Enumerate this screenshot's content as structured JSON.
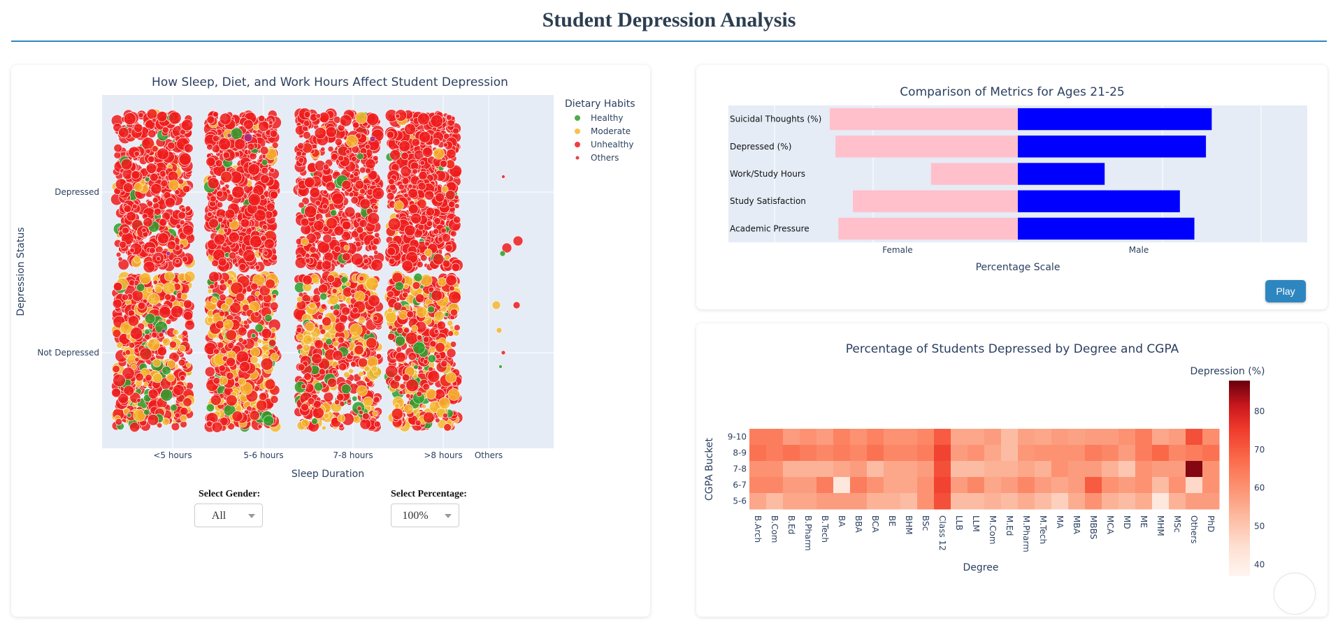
{
  "page": {
    "title": "Student Depression Analysis"
  },
  "scatter": {
    "title": "How Sleep, Diet, and Work Hours Affect Student Depression",
    "xlabel": "Sleep Duration",
    "ylabel": "Depression Status",
    "x_categories": [
      "<5 hours",
      "5-6 hours",
      "7-8 hours",
      ">8 hours",
      "Others"
    ],
    "y_categories": [
      "Depressed",
      "Not Depressed"
    ],
    "legend": {
      "title": "Dietary Habits",
      "items": [
        {
          "label": "Healthy",
          "color": "#2ca02c"
        },
        {
          "label": "Moderate",
          "color": "#f5b82e"
        },
        {
          "label": "Unhealthy",
          "color": "#ee1c1c"
        },
        {
          "label": "Others",
          "color": "#d62728"
        }
      ]
    }
  },
  "controls": {
    "gender_label": "Select Gender:",
    "gender_value": "All",
    "percentage_label": "Select Percentage:",
    "percentage_value": "100%"
  },
  "comparison": {
    "title": "Comparison of Metrics for Ages 21-25",
    "xlabel": "Percentage Scale",
    "tick_left": "Female",
    "tick_right": "Male",
    "female_color": "#ffc0cb",
    "male_color": "#0000ff",
    "play_label": "Play"
  },
  "heatmap": {
    "title": "Percentage of Students Depressed by Degree and CGPA",
    "xlabel": "Degree",
    "ylabel": "CGPA Bucket",
    "colorbar_title": "Depression (%)",
    "colorbar_ticks": [
      "80",
      "70",
      "60",
      "50",
      "40"
    ]
  },
  "chart_data": [
    {
      "type": "scatter",
      "title": "How Sleep, Diet, and Work Hours Affect Student Depression",
      "xlabel": "Sleep Duration",
      "ylabel": "Depression Status",
      "x_categories": [
        "<5 hours",
        "5-6 hours",
        "7-8 hours",
        ">8 hours",
        "Others"
      ],
      "y_categories": [
        "Depressed",
        "Not Depressed"
      ],
      "series": [
        {
          "name": "Healthy"
        },
        {
          "name": "Moderate"
        },
        {
          "name": "Unhealthy"
        },
        {
          "name": "Others"
        }
      ],
      "legend_position": "right"
    },
    {
      "type": "bar",
      "orientation": "horizontal",
      "title": "Comparison of Metrics for Ages 21-25",
      "xlabel": "Percentage Scale",
      "categories": [
        "Suicidal Thoughts (%)",
        "Depressed (%)",
        "Work/Study Hours",
        "Study Satisfaction",
        "Academic Pressure"
      ],
      "series": [
        {
          "name": "Female",
          "values": [
            65,
            63,
            30,
            57,
            62
          ]
        },
        {
          "name": "Male",
          "values": [
            67,
            65,
            30,
            56,
            61
          ]
        }
      ],
      "xlim": [
        -100,
        100
      ]
    },
    {
      "type": "heatmap",
      "title": "Percentage of Students Depressed by Degree and CGPA",
      "xlabel": "Degree",
      "ylabel": "CGPA Bucket",
      "x": [
        "B.Arch",
        "B.Com",
        "B.Ed",
        "B.Pharm",
        "B.Tech",
        "BA",
        "BBA",
        "BCA",
        "BE",
        "BHM",
        "BSc",
        "Class 12",
        "LLB",
        "LLM",
        "M.Com",
        "M.Ed",
        "M.Pharm",
        "M.Tech",
        "MA",
        "MBA",
        "MBBS",
        "MCA",
        "MD",
        "ME",
        "MHM",
        "MSc",
        "Others",
        "PhD"
      ],
      "y": [
        "9-10",
        "8-9",
        "7-8",
        "6-7",
        "5-6"
      ],
      "z": [
        [
          64,
          64,
          58,
          60,
          58,
          63,
          60,
          63,
          60,
          60,
          62,
          70,
          56,
          56,
          58,
          52,
          57,
          56,
          58,
          57,
          58,
          58,
          60,
          64,
          56,
          58,
          72,
          61
        ],
        [
          66,
          64,
          66,
          64,
          62,
          64,
          62,
          66,
          62,
          62,
          64,
          74,
          58,
          60,
          56,
          52,
          59,
          60,
          60,
          60,
          64,
          62,
          58,
          64,
          68,
          62,
          64,
          66
        ],
        [
          60,
          60,
          54,
          54,
          54,
          56,
          58,
          52,
          56,
          56,
          58,
          72,
          52,
          52,
          54,
          54,
          56,
          54,
          60,
          58,
          58,
          54,
          50,
          60,
          58,
          58,
          86,
          60
        ],
        [
          62,
          62,
          58,
          58,
          64,
          42,
          64,
          60,
          56,
          56,
          60,
          74,
          58,
          62,
          56,
          58,
          62,
          58,
          56,
          58,
          70,
          60,
          58,
          60,
          52,
          60,
          46,
          60
        ],
        [
          56,
          52,
          56,
          56,
          58,
          58,
          58,
          54,
          54,
          52,
          60,
          72,
          52,
          52,
          54,
          52,
          55,
          52,
          48,
          55,
          60,
          54,
          52,
          55,
          42,
          54,
          58,
          58
        ]
      ],
      "colorbar_title": "Depression (%)",
      "zlim": [
        37,
        88
      ]
    }
  ]
}
